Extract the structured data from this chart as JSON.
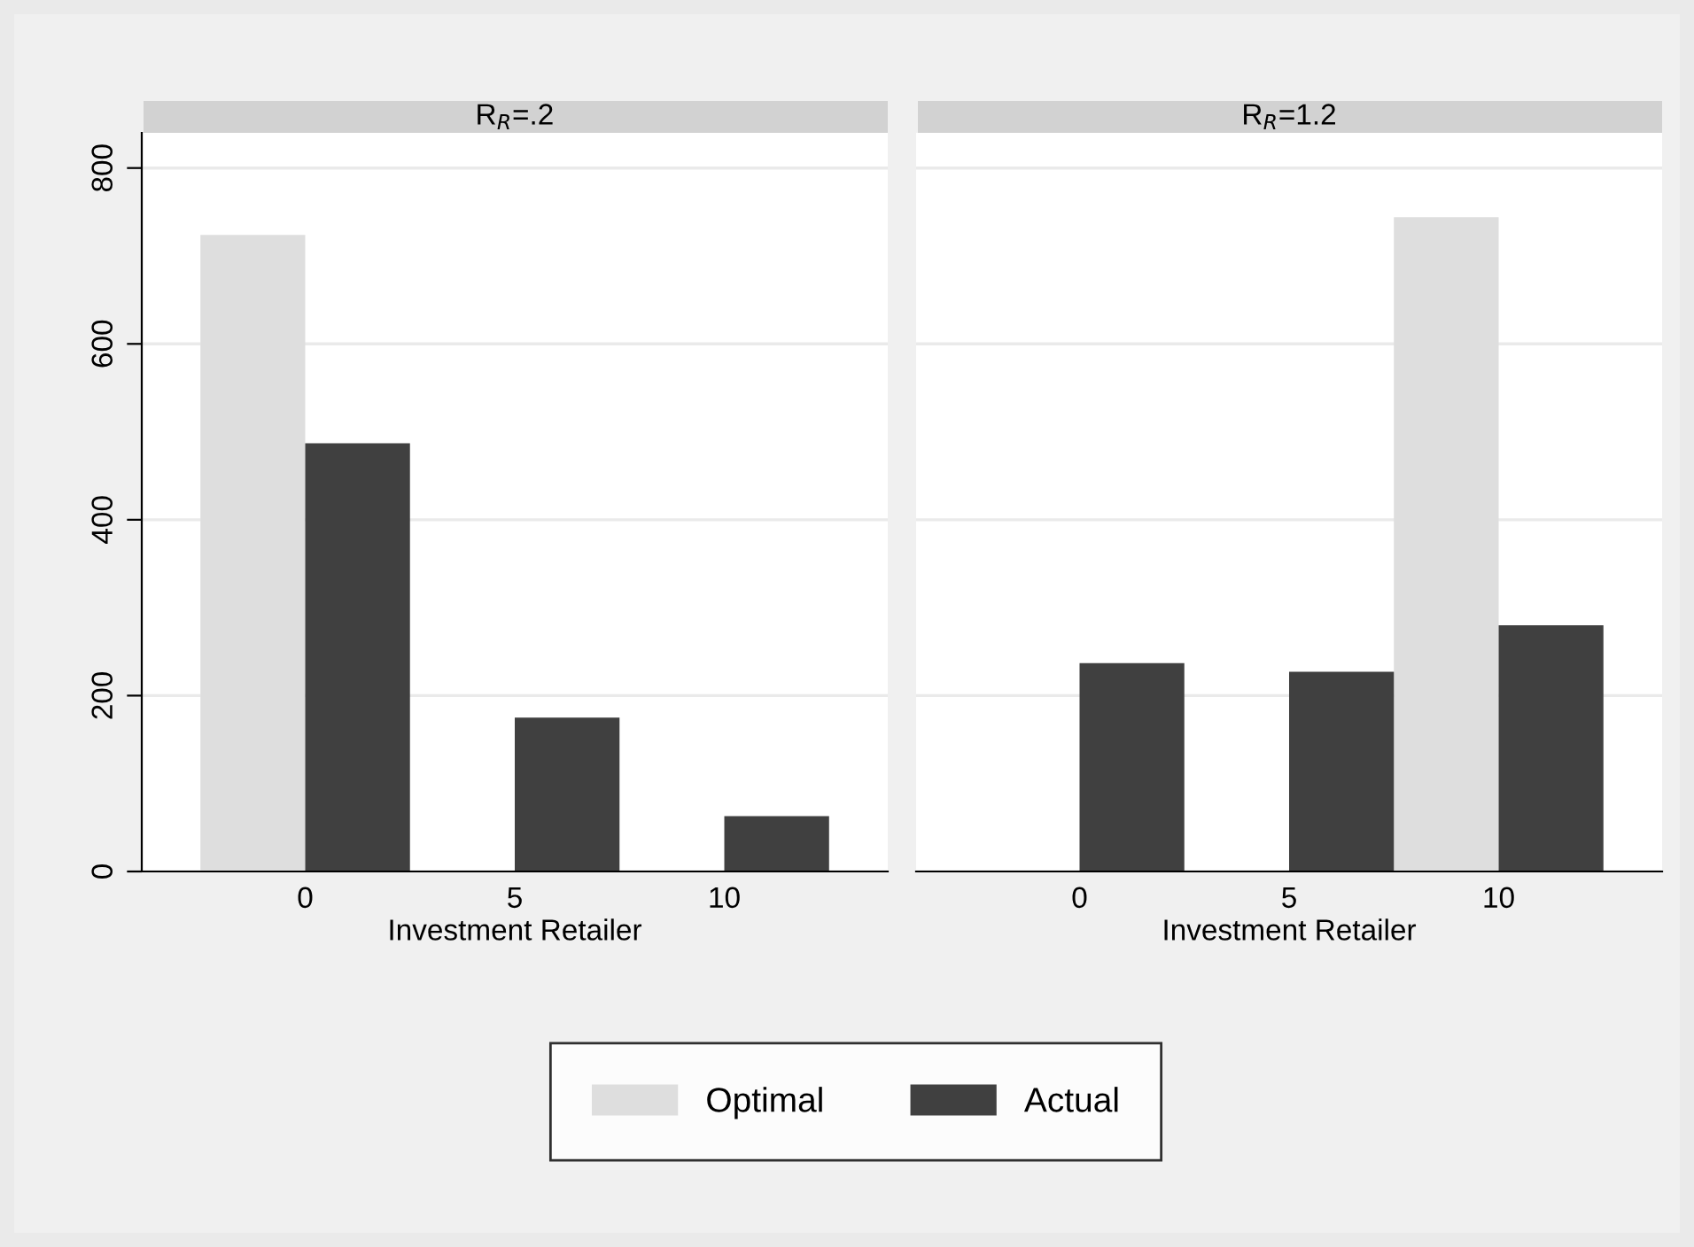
{
  "chart_data": [
    {
      "type": "bar",
      "title": "R$_{R}$=.2",
      "xlabel": "Investment Retailer",
      "categories": [
        "0",
        "5",
        "10"
      ],
      "ylim": [
        0,
        840
      ],
      "yticks": [
        0,
        200,
        400,
        600,
        800
      ],
      "grid": "y",
      "legend": "bottom",
      "series": [
        {
          "name": "Optimal",
          "color": "#dedede",
          "values": [
            724,
            0,
            0
          ]
        },
        {
          "name": "Actual",
          "color": "#404040",
          "values": [
            487,
            175,
            63
          ]
        }
      ]
    },
    {
      "type": "bar",
      "title": "R$_{R}$=1.2",
      "xlabel": "Investment Retailer",
      "categories": [
        "0",
        "5",
        "10"
      ],
      "ylim": [
        0,
        840
      ],
      "yticks": [
        0,
        200,
        400,
        600,
        800
      ],
      "grid": "y",
      "tick_labels": "x",
      "series": [
        {
          "color": "#dedede",
          "values": [
            0,
            0,
            744
          ]
        },
        {
          "color": "#404040",
          "values": [
            237,
            227,
            280
          ]
        }
      ]
    }
  ]
}
